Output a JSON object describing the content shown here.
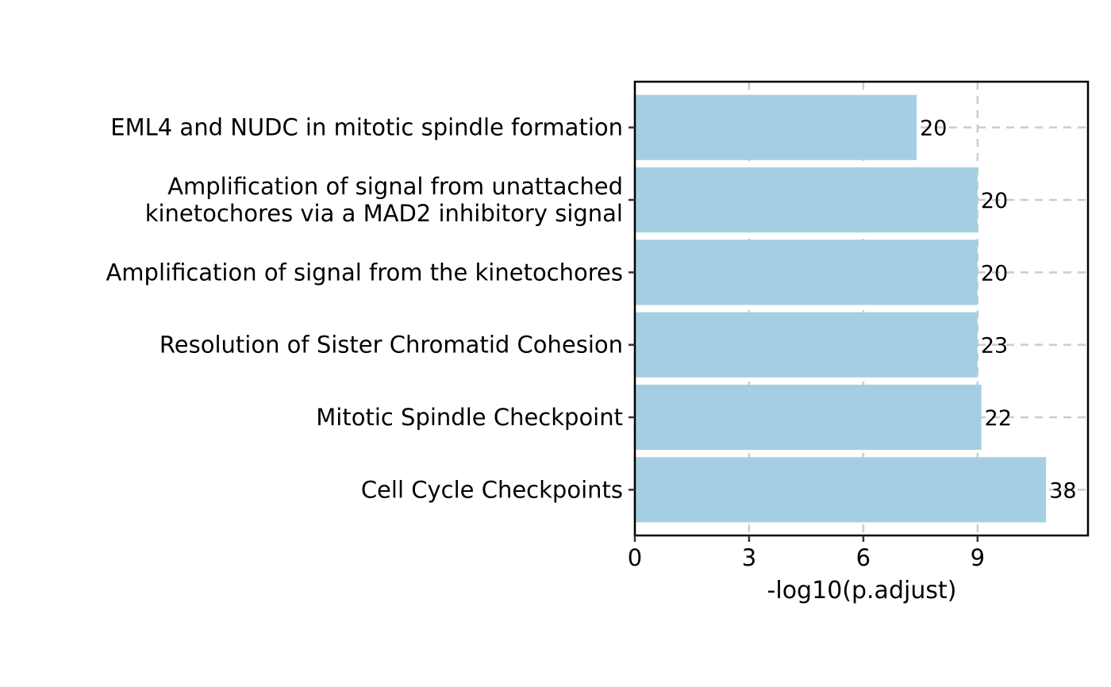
{
  "chart_data": {
    "type": "bar",
    "orientation": "horizontal",
    "title": "",
    "xlabel": "-log10(p.adjust)",
    "ylabel": "",
    "xlim": [
      0,
      11.9
    ],
    "xticks": [
      "0",
      "3",
      "6",
      "9"
    ],
    "grid": "dashed",
    "bar_color": "#A6CEE3",
    "categories": [
      "EML4 and NUDC in mitotic spindle formation",
      "Amplification of signal from unattached kinetochores via a MAD2 inhibitory signal",
      "Amplification of signal from the kinetochores",
      "Resolution of Sister Chromatid Cohesion",
      "Mitotic Spindle Checkpoint",
      "Cell Cycle Checkpoints"
    ],
    "category_lines": [
      [
        "EML4 and NUDC in mitotic spindle formation"
      ],
      [
        "Amplification of signal from unattached",
        "kinetochores via a MAD2 inhibitory signal"
      ],
      [
        "Amplification of signal from the kinetochores"
      ],
      [
        "Resolution of Sister Chromatid Cohesion"
      ],
      [
        "Mitotic Spindle Checkpoint"
      ],
      [
        "Cell Cycle Checkpoints"
      ]
    ],
    "values": [
      7.4,
      9.0,
      9.0,
      9.0,
      9.1,
      10.8
    ],
    "counts": [
      "20",
      "20",
      "20",
      "23",
      "22",
      "38"
    ]
  }
}
